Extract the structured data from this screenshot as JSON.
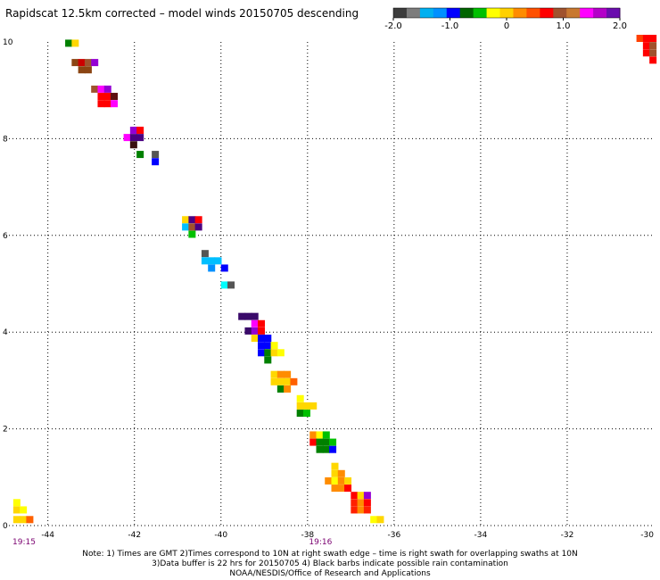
{
  "title": "Rapidscat 12.5km corrected – model winds 20150705 descending",
  "colorbar": {
    "colors": [
      "#3c3c3c",
      "#7c7c7c",
      "#00b0f0",
      "#0090ff",
      "#0000ff",
      "#006400",
      "#00c000",
      "#ffff00",
      "#ffd000",
      "#ff8c00",
      "#ff5000",
      "#ff0000",
      "#a0522d",
      "#c87830",
      "#ff00ff",
      "#b400c8",
      "#6a0dad"
    ],
    "tick_labels": [
      "-2.0",
      "-1.0",
      "0",
      "1.0",
      "2.0"
    ],
    "tick_values": [
      -2.0,
      -1.0,
      0,
      1.0,
      2.0
    ],
    "range": [
      -2.0,
      2.0
    ]
  },
  "chart_data": {
    "type": "heatmap",
    "x_ticks": [
      "-44",
      "-42",
      "-40",
      "-38",
      "-36",
      "-34",
      "-32",
      "-30"
    ],
    "y_ticks": [
      "0",
      "2",
      "4",
      "6",
      "8",
      "10"
    ],
    "xlim": [
      -44.9,
      -30
    ],
    "ylim": [
      0,
      10
    ],
    "grid": true,
    "cells": [
      {
        "lon": -43.6,
        "lat": 9.9,
        "c": "#008000"
      },
      {
        "lon": -43.45,
        "lat": 9.9,
        "c": "#ffd700"
      },
      {
        "lon": -43.45,
        "lat": 9.5,
        "c": "#8b4513"
      },
      {
        "lon": -43.3,
        "lat": 9.5,
        "c": "#cc0000"
      },
      {
        "lon": -43.15,
        "lat": 9.5,
        "c": "#a0522d"
      },
      {
        "lon": -43.0,
        "lat": 9.5,
        "c": "#9400d3"
      },
      {
        "lon": -43.3,
        "lat": 9.35,
        "c": "#8b4513"
      },
      {
        "lon": -43.15,
        "lat": 9.35,
        "c": "#8b4513"
      },
      {
        "lon": -43.0,
        "lat": 8.95,
        "c": "#a0522d"
      },
      {
        "lon": -42.85,
        "lat": 8.95,
        "c": "#ff00ff"
      },
      {
        "lon": -42.7,
        "lat": 8.95,
        "c": "#9400d3"
      },
      {
        "lon": -42.85,
        "lat": 8.8,
        "c": "#ff0000"
      },
      {
        "lon": -42.7,
        "lat": 8.8,
        "c": "#ff0000"
      },
      {
        "lon": -42.55,
        "lat": 8.8,
        "c": "#5c1010"
      },
      {
        "lon": -42.85,
        "lat": 8.65,
        "c": "#ff0000"
      },
      {
        "lon": -42.7,
        "lat": 8.65,
        "c": "#ff0000"
      },
      {
        "lon": -42.55,
        "lat": 8.65,
        "c": "#ff00ff"
      },
      {
        "lon": -42.1,
        "lat": 8.1,
        "c": "#9400d3"
      },
      {
        "lon": -41.95,
        "lat": 8.1,
        "c": "#ff0000"
      },
      {
        "lon": -42.25,
        "lat": 7.95,
        "c": "#ff00ff"
      },
      {
        "lon": -42.1,
        "lat": 7.95,
        "c": "#4b0082"
      },
      {
        "lon": -41.95,
        "lat": 7.95,
        "c": "#4b0082"
      },
      {
        "lon": -42.1,
        "lat": 7.8,
        "c": "#3a1010"
      },
      {
        "lon": -41.95,
        "lat": 7.6,
        "c": "#008000"
      },
      {
        "lon": -41.6,
        "lat": 7.6,
        "c": "#555555"
      },
      {
        "lon": -41.6,
        "lat": 7.45,
        "c": "#0000ff"
      },
      {
        "lon": -40.9,
        "lat": 6.25,
        "c": "#ffd700"
      },
      {
        "lon": -40.75,
        "lat": 6.25,
        "c": "#4b0082"
      },
      {
        "lon": -40.6,
        "lat": 6.25,
        "c": "#ff0000"
      },
      {
        "lon": -40.9,
        "lat": 6.1,
        "c": "#00bfff"
      },
      {
        "lon": -40.75,
        "lat": 6.1,
        "c": "#a0522d"
      },
      {
        "lon": -40.6,
        "lat": 6.1,
        "c": "#4b0082"
      },
      {
        "lon": -40.75,
        "lat": 5.95,
        "c": "#00c000"
      },
      {
        "lon": -40.45,
        "lat": 5.55,
        "c": "#555555"
      },
      {
        "lon": -40.45,
        "lat": 5.4,
        "c": "#00bfff"
      },
      {
        "lon": -40.3,
        "lat": 5.4,
        "c": "#00bfff"
      },
      {
        "lon": -40.15,
        "lat": 5.4,
        "c": "#00bfff"
      },
      {
        "lon": -40.3,
        "lat": 5.25,
        "c": "#0090ff"
      },
      {
        "lon": -40.0,
        "lat": 5.25,
        "c": "#0000ff"
      },
      {
        "lon": -40.0,
        "lat": 4.9,
        "c": "#00ffff"
      },
      {
        "lon": -39.85,
        "lat": 4.9,
        "c": "#555555"
      },
      {
        "lon": -39.6,
        "lat": 4.25,
        "c": "#3a0a6a"
      },
      {
        "lon": -39.45,
        "lat": 4.25,
        "c": "#3a0a6a"
      },
      {
        "lon": -39.3,
        "lat": 4.25,
        "c": "#3a0a6a"
      },
      {
        "lon": -39.3,
        "lat": 4.1,
        "c": "#ff00ff"
      },
      {
        "lon": -39.15,
        "lat": 4.1,
        "c": "#ff0000"
      },
      {
        "lon": -39.45,
        "lat": 3.95,
        "c": "#3a0a6a"
      },
      {
        "lon": -39.3,
        "lat": 3.95,
        "c": "#9400d3"
      },
      {
        "lon": -39.15,
        "lat": 3.95,
        "c": "#ff0000"
      },
      {
        "lon": -39.3,
        "lat": 3.8,
        "c": "#ffd700"
      },
      {
        "lon": -39.15,
        "lat": 3.8,
        "c": "#0000ff"
      },
      {
        "lon": -39.0,
        "lat": 3.8,
        "c": "#0000ff"
      },
      {
        "lon": -39.15,
        "lat": 3.65,
        "c": "#0000ff"
      },
      {
        "lon": -39.0,
        "lat": 3.65,
        "c": "#0000ff"
      },
      {
        "lon": -38.85,
        "lat": 3.65,
        "c": "#ffff00"
      },
      {
        "lon": -39.15,
        "lat": 3.5,
        "c": "#0000ff"
      },
      {
        "lon": -39.0,
        "lat": 3.5,
        "c": "#008000"
      },
      {
        "lon": -38.85,
        "lat": 3.5,
        "c": "#ffd700"
      },
      {
        "lon": -38.7,
        "lat": 3.5,
        "c": "#ffff00"
      },
      {
        "lon": -39.0,
        "lat": 3.35,
        "c": "#008000"
      },
      {
        "lon": -38.85,
        "lat": 3.05,
        "c": "#ffd700"
      },
      {
        "lon": -38.7,
        "lat": 3.05,
        "c": "#ff8c00"
      },
      {
        "lon": -38.55,
        "lat": 3.05,
        "c": "#ff8c00"
      },
      {
        "lon": -38.85,
        "lat": 2.9,
        "c": "#ffd700"
      },
      {
        "lon": -38.7,
        "lat": 2.9,
        "c": "#ffd700"
      },
      {
        "lon": -38.55,
        "lat": 2.9,
        "c": "#ffd700"
      },
      {
        "lon": -38.4,
        "lat": 2.9,
        "c": "#ff6000"
      },
      {
        "lon": -38.7,
        "lat": 2.75,
        "c": "#008000"
      },
      {
        "lon": -38.55,
        "lat": 2.75,
        "c": "#ff8c00"
      },
      {
        "lon": -38.25,
        "lat": 2.55,
        "c": "#ffff00"
      },
      {
        "lon": -38.25,
        "lat": 2.4,
        "c": "#ffd700"
      },
      {
        "lon": -38.1,
        "lat": 2.4,
        "c": "#ffd700"
      },
      {
        "lon": -37.95,
        "lat": 2.4,
        "c": "#ffd700"
      },
      {
        "lon": -38.25,
        "lat": 2.25,
        "c": "#008000"
      },
      {
        "lon": -38.1,
        "lat": 2.25,
        "c": "#00c000"
      },
      {
        "lon": -37.95,
        "lat": 1.8,
        "c": "#ff8c00"
      },
      {
        "lon": -37.8,
        "lat": 1.8,
        "c": "#ffff00"
      },
      {
        "lon": -37.65,
        "lat": 1.8,
        "c": "#00c000"
      },
      {
        "lon": -37.95,
        "lat": 1.65,
        "c": "#ff0000"
      },
      {
        "lon": -37.8,
        "lat": 1.65,
        "c": "#008000"
      },
      {
        "lon": -37.65,
        "lat": 1.65,
        "c": "#008000"
      },
      {
        "lon": -37.5,
        "lat": 1.65,
        "c": "#00c000"
      },
      {
        "lon": -37.8,
        "lat": 1.5,
        "c": "#008000"
      },
      {
        "lon": -37.65,
        "lat": 1.5,
        "c": "#008000"
      },
      {
        "lon": -37.5,
        "lat": 1.5,
        "c": "#0000ff"
      },
      {
        "lon": -37.45,
        "lat": 1.15,
        "c": "#ffd700"
      },
      {
        "lon": -37.45,
        "lat": 1.0,
        "c": "#ffd700"
      },
      {
        "lon": -37.3,
        "lat": 1.0,
        "c": "#ff8c00"
      },
      {
        "lon": -37.6,
        "lat": 0.85,
        "c": "#ff8c00"
      },
      {
        "lon": -37.45,
        "lat": 0.85,
        "c": "#ffff00"
      },
      {
        "lon": -37.3,
        "lat": 0.85,
        "c": "#ff8c00"
      },
      {
        "lon": -37.15,
        "lat": 0.85,
        "c": "#ffd700"
      },
      {
        "lon": -37.45,
        "lat": 0.7,
        "c": "#ff8c00"
      },
      {
        "lon": -37.3,
        "lat": 0.7,
        "c": "#ff8c00"
      },
      {
        "lon": -37.15,
        "lat": 0.7,
        "c": "#ff0000"
      },
      {
        "lon": -37.0,
        "lat": 0.55,
        "c": "#ff0000"
      },
      {
        "lon": -36.85,
        "lat": 0.55,
        "c": "#ffd700"
      },
      {
        "lon": -36.7,
        "lat": 0.55,
        "c": "#9400d3"
      },
      {
        "lon": -37.0,
        "lat": 0.4,
        "c": "#ff2000"
      },
      {
        "lon": -36.85,
        "lat": 0.4,
        "c": "#ff8c00"
      },
      {
        "lon": -36.7,
        "lat": 0.4,
        "c": "#ff0000"
      },
      {
        "lon": -37.0,
        "lat": 0.25,
        "c": "#ff2000"
      },
      {
        "lon": -36.85,
        "lat": 0.25,
        "c": "#ff8c00"
      },
      {
        "lon": -36.7,
        "lat": 0.25,
        "c": "#ff2000"
      },
      {
        "lon": -36.55,
        "lat": 0.05,
        "c": "#ffff00"
      },
      {
        "lon": -36.4,
        "lat": 0.05,
        "c": "#ffd700"
      },
      {
        "lon": -44.8,
        "lat": 0.4,
        "c": "#ffff00"
      },
      {
        "lon": -44.8,
        "lat": 0.25,
        "c": "#ffd700"
      },
      {
        "lon": -44.65,
        "lat": 0.25,
        "c": "#ffff00"
      },
      {
        "lon": -44.8,
        "lat": 0.05,
        "c": "#ffd700"
      },
      {
        "lon": -44.65,
        "lat": 0.05,
        "c": "#ffd700"
      },
      {
        "lon": -44.5,
        "lat": 0.05,
        "c": "#ff6000"
      },
      {
        "lon": -30.4,
        "lat": 10.0,
        "c": "#ff4000"
      },
      {
        "lon": -30.25,
        "lat": 10.0,
        "c": "#ff0000"
      },
      {
        "lon": -30.1,
        "lat": 10.0,
        "c": "#ff0000"
      },
      {
        "lon": -30.25,
        "lat": 9.85,
        "c": "#ff0000"
      },
      {
        "lon": -30.1,
        "lat": 9.85,
        "c": "#a0522d"
      },
      {
        "lon": -30.25,
        "lat": 9.7,
        "c": "#ff0000"
      },
      {
        "lon": -30.1,
        "lat": 9.7,
        "c": "#a0522d"
      },
      {
        "lon": -30.1,
        "lat": 9.55,
        "c": "#ff0000"
      }
    ]
  },
  "time_labels": [
    {
      "text": "19:15",
      "lon": -44.55
    },
    {
      "text": "19:16",
      "lon": -37.7
    }
  ],
  "notes": [
    "Note: 1) Times are GMT 2)Times correspond to 10N at right swath edge – time is right swath for overlapping swaths at 10N",
    "3)Data buffer is 22 hrs for 20150705 4) Black barbs indicate possible rain contamination",
    "NOAA/NESDIS/Office of Research and Applications"
  ]
}
